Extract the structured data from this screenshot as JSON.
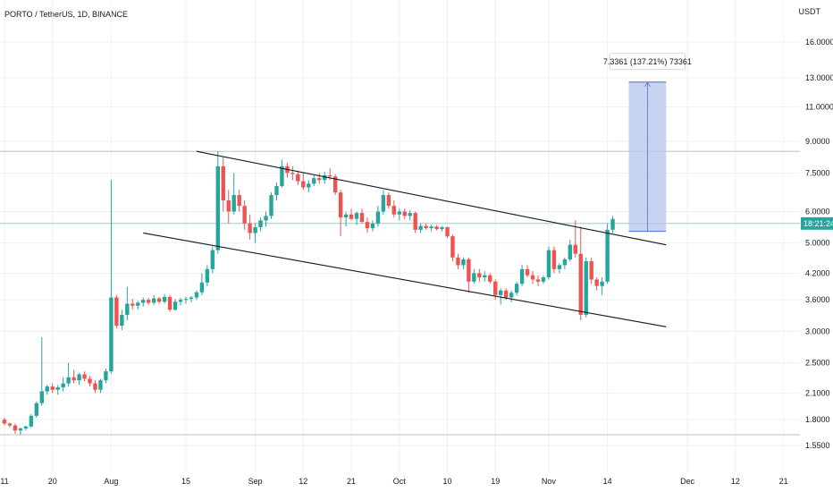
{
  "header": {
    "symbol_title": "PORTO / TetherUS, 1D, BINANCE",
    "currency": "USDT"
  },
  "colors": {
    "up": "#26a69a",
    "down": "#ef5350",
    "grid": "#eef0f3",
    "line": "#131722",
    "range_fill": "#b3c6ee",
    "range_stroke": "#4a74d6",
    "hline": "#9598a1",
    "price_badge": "#26a69a"
  },
  "chart_data": {
    "type": "candlestick",
    "scale": "log",
    "y_ticks": [
      "16.0000",
      "13.0000",
      "11.0000",
      "9.0000",
      "7.5000",
      "6.0000",
      "5.0000",
      "4.2000",
      "3.6000",
      "3.0000",
      "2.5000",
      "2.1000",
      "1.8000",
      "1.5500"
    ],
    "x_ticks": [
      "11",
      "20",
      "Aug",
      "15",
      "Sep",
      "12",
      "21",
      "Oct",
      "10",
      "19",
      "Nov",
      "14",
      "Dec",
      "12",
      "21"
    ],
    "current_price_label": "18:21:24",
    "horizontal_levels": [
      8.5,
      5.6,
      1.65
    ],
    "channel_upper": {
      "start_date": "Aug 17",
      "start_price": 8.5,
      "end_date": "Nov 30",
      "end_price": 4.95
    },
    "channel_lower": {
      "start_date": "Aug 1",
      "start_price": 5.3,
      "end_date": "Nov 30",
      "end_price": 3.08
    },
    "measure": {
      "label": "7.3361 (137.21%) 73361",
      "from_price": 5.35,
      "to_price": 12.69
    },
    "candles": [
      [
        1.8,
        1.82,
        1.74,
        1.76
      ],
      [
        1.76,
        1.77,
        1.72,
        1.74
      ],
      [
        1.74,
        1.76,
        1.66,
        1.69
      ],
      [
        1.69,
        1.72,
        1.65,
        1.71
      ],
      [
        1.71,
        1.74,
        1.69,
        1.73
      ],
      [
        1.73,
        1.86,
        1.72,
        1.84
      ],
      [
        1.84,
        2.0,
        1.82,
        1.98
      ],
      [
        1.98,
        2.9,
        1.95,
        2.12
      ],
      [
        2.12,
        2.2,
        2.08,
        2.18
      ],
      [
        2.18,
        2.22,
        2.1,
        2.14
      ],
      [
        2.14,
        2.2,
        2.08,
        2.17
      ],
      [
        2.17,
        2.3,
        2.12,
        2.22
      ],
      [
        2.22,
        2.5,
        2.18,
        2.3
      ],
      [
        2.3,
        2.4,
        2.22,
        2.26
      ],
      [
        2.26,
        2.36,
        2.2,
        2.34
      ],
      [
        2.34,
        2.38,
        2.25,
        2.28
      ],
      [
        2.28,
        2.32,
        2.18,
        2.22
      ],
      [
        2.22,
        2.26,
        2.1,
        2.14
      ],
      [
        2.14,
        2.28,
        2.1,
        2.26
      ],
      [
        2.26,
        2.42,
        2.22,
        2.38
      ],
      [
        2.38,
        7.2,
        2.35,
        3.65
      ],
      [
        3.65,
        3.7,
        3.05,
        3.1
      ],
      [
        3.1,
        3.4,
        3.02,
        3.3
      ],
      [
        3.3,
        3.88,
        3.2,
        3.52
      ],
      [
        3.52,
        3.62,
        3.4,
        3.48
      ],
      [
        3.48,
        3.58,
        3.4,
        3.54
      ],
      [
        3.54,
        3.65,
        3.46,
        3.6
      ],
      [
        3.6,
        3.64,
        3.5,
        3.54
      ],
      [
        3.54,
        3.7,
        3.5,
        3.63
      ],
      [
        3.63,
        3.66,
        3.52,
        3.56
      ],
      [
        3.56,
        3.72,
        3.52,
        3.66
      ],
      [
        3.66,
        3.7,
        3.36,
        3.4
      ],
      [
        3.4,
        3.62,
        3.38,
        3.56
      ],
      [
        3.56,
        3.64,
        3.48,
        3.6
      ],
      [
        3.6,
        3.66,
        3.52,
        3.62
      ],
      [
        3.62,
        3.68,
        3.55,
        3.65
      ],
      [
        3.65,
        3.8,
        3.6,
        3.76
      ],
      [
        3.76,
        4.2,
        3.7,
        3.98
      ],
      [
        3.98,
        4.4,
        3.9,
        4.3
      ],
      [
        4.3,
        4.9,
        4.2,
        4.8
      ],
      [
        4.8,
        8.5,
        4.7,
        7.8
      ],
      [
        7.8,
        8.2,
        6.0,
        6.4
      ],
      [
        6.4,
        6.8,
        5.6,
        6.0
      ],
      [
        6.0,
        7.5,
        5.9,
        6.6
      ],
      [
        6.6,
        6.8,
        6.0,
        6.2
      ],
      [
        6.2,
        6.4,
        5.4,
        5.6
      ],
      [
        5.6,
        5.9,
        5.1,
        5.3
      ],
      [
        5.3,
        5.6,
        5.0,
        5.48
      ],
      [
        5.48,
        5.8,
        5.35,
        5.7
      ],
      [
        5.7,
        6.0,
        5.5,
        5.85
      ],
      [
        5.85,
        6.7,
        5.75,
        6.6
      ],
      [
        6.6,
        7.1,
        6.4,
        6.95
      ],
      [
        6.95,
        8.1,
        6.9,
        7.8
      ],
      [
        7.8,
        7.95,
        7.3,
        7.5
      ],
      [
        7.5,
        7.8,
        7.2,
        7.45
      ],
      [
        7.45,
        7.6,
        7.0,
        7.15
      ],
      [
        7.15,
        7.5,
        6.8,
        6.9
      ],
      [
        6.9,
        7.2,
        6.7,
        7.05
      ],
      [
        7.05,
        7.4,
        6.95,
        7.28
      ],
      [
        7.28,
        7.5,
        7.05,
        7.2
      ],
      [
        7.2,
        7.55,
        7.05,
        7.4
      ],
      [
        7.4,
        7.7,
        7.2,
        7.35
      ],
      [
        7.35,
        7.45,
        6.6,
        6.7
      ],
      [
        6.7,
        6.8,
        5.2,
        5.8
      ],
      [
        5.8,
        6.0,
        5.5,
        5.9
      ],
      [
        5.9,
        6.1,
        5.7,
        5.75
      ],
      [
        5.75,
        6.0,
        5.55,
        5.95
      ],
      [
        5.95,
        6.1,
        5.6,
        5.65
      ],
      [
        5.65,
        5.8,
        5.3,
        5.45
      ],
      [
        5.45,
        5.7,
        5.35,
        5.6
      ],
      [
        5.6,
        6.2,
        5.5,
        6.0
      ],
      [
        6.0,
        6.8,
        5.9,
        6.6
      ],
      [
        6.6,
        6.7,
        6.1,
        6.2
      ],
      [
        6.2,
        6.4,
        5.8,
        5.9
      ],
      [
        5.9,
        6.1,
        5.7,
        6.0
      ],
      [
        6.0,
        6.1,
        5.75,
        5.85
      ],
      [
        5.85,
        6.05,
        5.7,
        5.95
      ],
      [
        5.95,
        6.0,
        5.3,
        5.4
      ],
      [
        5.4,
        5.6,
        5.3,
        5.52
      ],
      [
        5.52,
        5.6,
        5.4,
        5.45
      ],
      [
        5.45,
        5.56,
        5.35,
        5.5
      ],
      [
        5.5,
        5.55,
        5.38,
        5.42
      ],
      [
        5.42,
        5.52,
        5.35,
        5.48
      ],
      [
        5.48,
        5.5,
        5.15,
        5.2
      ],
      [
        5.2,
        5.25,
        4.5,
        4.6
      ],
      [
        4.6,
        4.7,
        4.3,
        4.4
      ],
      [
        4.4,
        4.6,
        4.3,
        4.55
      ],
      [
        4.55,
        4.6,
        3.75,
        4.0
      ],
      [
        4.0,
        4.3,
        3.95,
        4.2
      ],
      [
        4.2,
        4.3,
        4.0,
        4.1
      ],
      [
        4.1,
        4.25,
        4.0,
        4.15
      ],
      [
        4.15,
        4.2,
        3.95,
        4.0
      ],
      [
        4.0,
        4.05,
        3.6,
        3.7
      ],
      [
        3.7,
        3.85,
        3.5,
        3.8
      ],
      [
        3.8,
        3.85,
        3.6,
        3.65
      ],
      [
        3.65,
        3.8,
        3.55,
        3.75
      ],
      [
        3.75,
        4.0,
        3.7,
        3.95
      ],
      [
        3.95,
        4.4,
        3.9,
        4.3
      ],
      [
        4.3,
        4.4,
        4.1,
        4.15
      ],
      [
        4.15,
        4.25,
        3.95,
        4.05
      ],
      [
        4.05,
        4.15,
        3.9,
        4.0
      ],
      [
        4.0,
        4.15,
        3.95,
        4.1
      ],
      [
        4.1,
        4.9,
        4.05,
        4.8
      ],
      [
        4.8,
        4.9,
        4.2,
        4.3
      ],
      [
        4.3,
        4.45,
        4.2,
        4.4
      ],
      [
        4.4,
        4.6,
        4.3,
        4.55
      ],
      [
        4.55,
        5.1,
        4.5,
        4.95
      ],
      [
        4.95,
        5.7,
        4.6,
        4.7
      ],
      [
        4.7,
        5.5,
        3.2,
        3.3
      ],
      [
        3.3,
        4.6,
        3.25,
        4.5
      ],
      [
        4.5,
        4.6,
        3.95,
        4.05
      ],
      [
        4.05,
        4.1,
        3.8,
        3.9
      ],
      [
        3.9,
        4.1,
        3.7,
        4.0
      ],
      [
        4.0,
        5.6,
        3.95,
        5.4
      ],
      [
        5.4,
        5.85,
        5.3,
        5.75
      ]
    ]
  }
}
